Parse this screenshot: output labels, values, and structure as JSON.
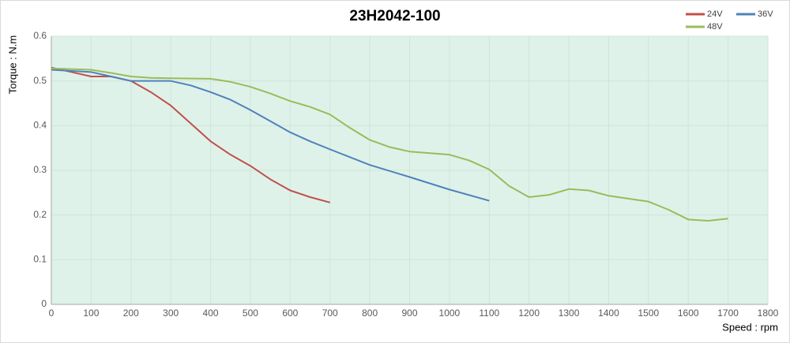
{
  "chart_data": {
    "type": "line",
    "title": "23H2042-100",
    "x_label": "Speed : rpm",
    "y_label": "Torque : N.m",
    "xlim": [
      0,
      1800
    ],
    "xticks": [
      0,
      100,
      200,
      300,
      400,
      500,
      600,
      700,
      800,
      900,
      1000,
      1100,
      1200,
      1300,
      1400,
      1500,
      1600,
      1700,
      1800
    ],
    "ylim": [
      0,
      0.6
    ],
    "yticks": [
      0,
      0.1,
      0.2,
      0.3,
      0.4,
      0.5,
      0.6
    ],
    "grid": true,
    "legend": "top-right",
    "series": [
      {
        "name": "24V",
        "color": "#c0504d",
        "x": [
          0,
          50,
          100,
          150,
          200,
          250,
          300,
          350,
          400,
          450,
          500,
          550,
          600,
          650,
          700
        ],
        "values": [
          0.53,
          0.52,
          0.51,
          0.51,
          0.5,
          0.475,
          0.445,
          0.405,
          0.365,
          0.335,
          0.31,
          0.28,
          0.255,
          0.24,
          0.228
        ]
      },
      {
        "name": "36V",
        "color": "#4f81bd",
        "x": [
          0,
          100,
          150,
          200,
          250,
          300,
          350,
          400,
          450,
          500,
          550,
          600,
          650,
          700,
          800,
          900,
          1000,
          1100
        ],
        "values": [
          0.525,
          0.52,
          0.51,
          0.5,
          0.5,
          0.5,
          0.49,
          0.475,
          0.458,
          0.435,
          0.41,
          0.385,
          0.365,
          0.347,
          0.312,
          0.285,
          0.257,
          0.232
        ]
      },
      {
        "name": "48V",
        "color": "#9bbb59",
        "x": [
          0,
          100,
          150,
          200,
          250,
          300,
          400,
          450,
          500,
          550,
          600,
          650,
          700,
          750,
          800,
          850,
          900,
          1000,
          1050,
          1100,
          1150,
          1200,
          1250,
          1300,
          1350,
          1400,
          1500,
          1550,
          1600,
          1650,
          1700
        ],
        "values": [
          0.528,
          0.525,
          0.518,
          0.51,
          0.507,
          0.506,
          0.505,
          0.498,
          0.487,
          0.472,
          0.455,
          0.442,
          0.425,
          0.395,
          0.368,
          0.352,
          0.342,
          0.335,
          0.322,
          0.302,
          0.265,
          0.24,
          0.245,
          0.258,
          0.255,
          0.243,
          0.23,
          0.212,
          0.19,
          0.187,
          0.192
        ]
      }
    ]
  }
}
